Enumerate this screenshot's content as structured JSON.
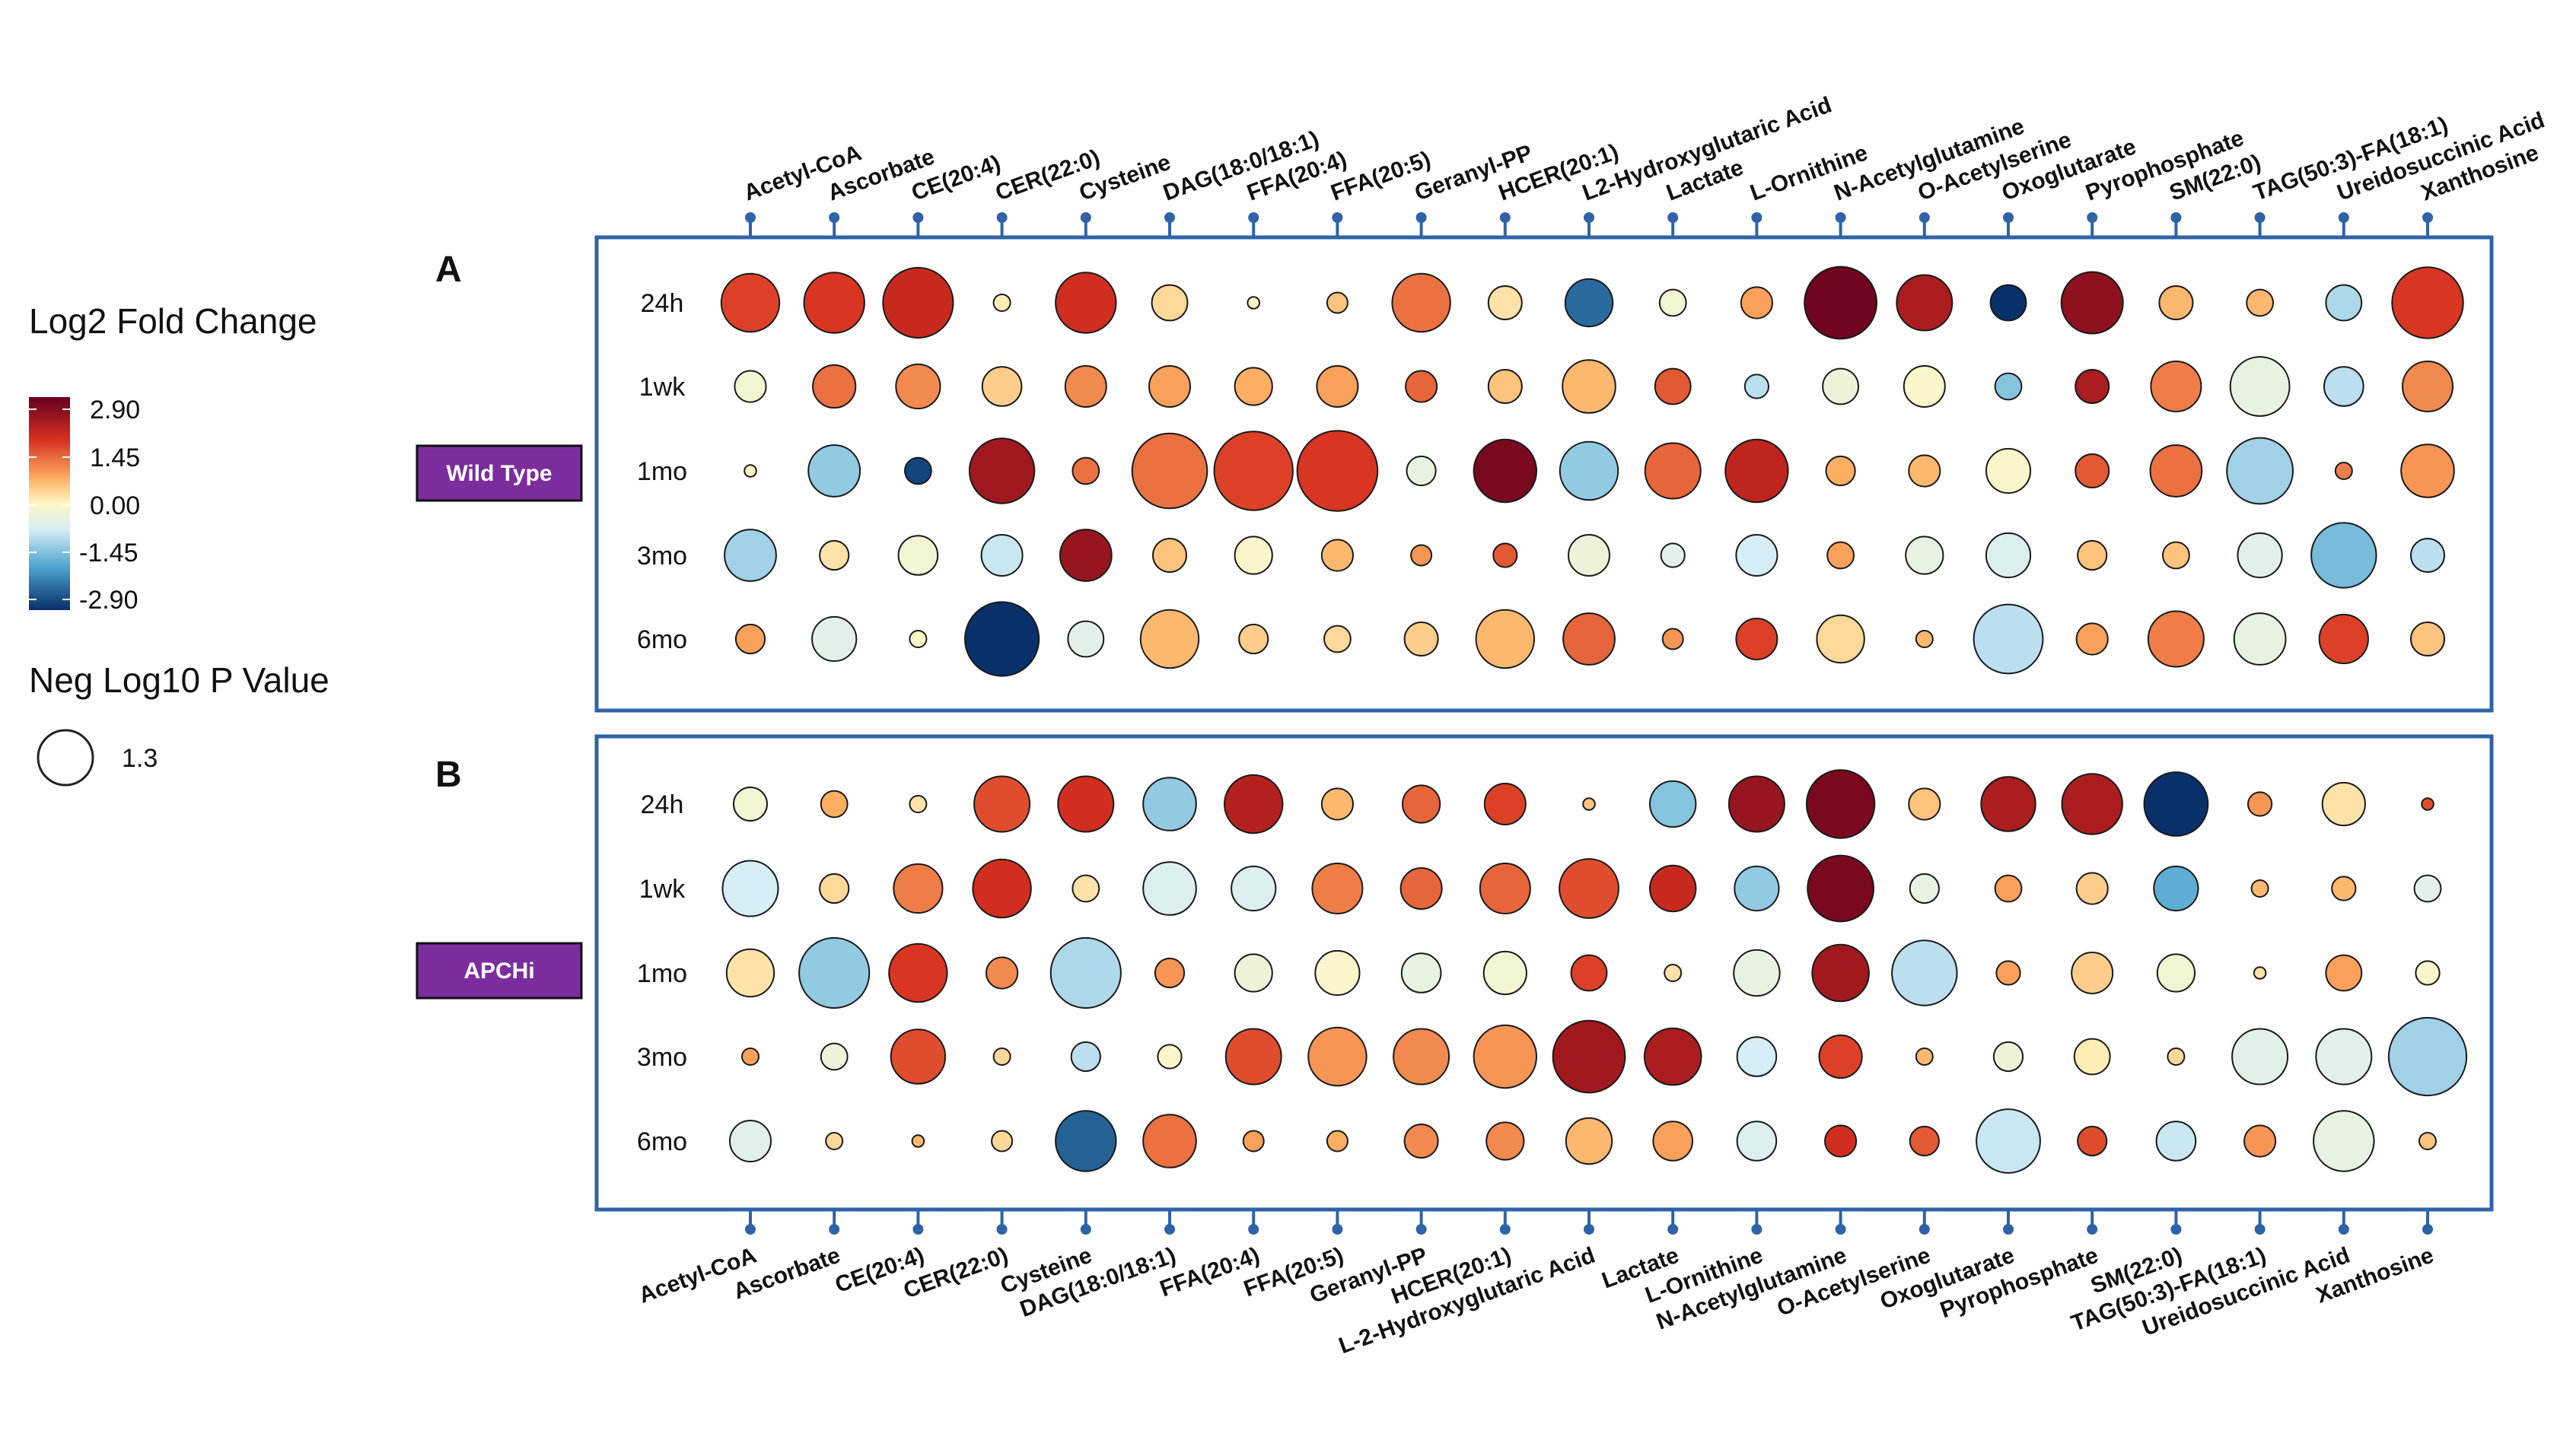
{
  "legend": {
    "color_title": "Log2 Fold Change",
    "color_ticks": [
      "2.90",
      "1.45",
      "0.00",
      "-1.45",
      "-2.90"
    ],
    "size_title": "Neg Log10 P Value",
    "size_value": "1.3"
  },
  "colors": {
    "group_box": "#7b2d9e",
    "frame": "#2e63a8",
    "scale": [
      "#67001f",
      "#d7301f",
      "#fdae61",
      "#fff7c4",
      "#d6eef5",
      "#4aa3cf",
      "#08306b"
    ]
  },
  "chart_data": {
    "type": "bubble-heatmap",
    "legend_placement": "left",
    "color_scale": {
      "label": "Log2 Fold Change",
      "min": -2.9,
      "max": 2.9
    },
    "size_scale": {
      "label": "Neg Log10 P Value",
      "reference_value": 1.3
    },
    "metabolites": [
      "Acetyl-CoA",
      "Ascorbate",
      "CE(20:4)",
      "CER(22:0)",
      "Cysteine",
      "DAG(18:0/18:1)",
      "FFA(20:4)",
      "FFA(20:5)",
      "Geranyl-PP",
      "HCER(20:1)",
      "L2-Hydroxyglutaric Acid",
      "Lactate",
      "L-Ornithine",
      "N-Acetylglutamine",
      "O-Acetylserine",
      "Oxoglutarate",
      "Pyrophosphate",
      "SM(22:0)",
      "TAG(50:3)-FA(18:1)",
      "Ureidosuccinic Acid",
      "Xanthosine"
    ],
    "metabolites_bottom": [
      "Acetyl-CoA",
      "Ascorbate",
      "CE(20:4)",
      "CER(22:0)",
      "Cysteine",
      "DAG(18:0/18:1)",
      "FFA(20:4)",
      "FFA(20:5)",
      "Geranyl-PP",
      "HCER(20:1)",
      "L-2-Hydroxyglutaric Acid",
      "Lactate",
      "L-Ornithine",
      "N-Acetylglutamine",
      "O-Acetylserine",
      "Oxoglutarate",
      "Pyrophosphate",
      "SM(22:0)",
      "TAG(50:3)-FA(18:1)",
      "Ureidosuccinic Acid",
      "Xanthosine"
    ],
    "timepoints": [
      "24h",
      "1wk",
      "1mo",
      "3mo",
      "6mo"
    ],
    "panels": [
      {
        "letter": "A",
        "group": "Wild Type",
        "log2fc": [
          [
            1.6,
            1.7,
            1.9,
            0.1,
            1.8,
            0.3,
            0.0,
            0.5,
            1.2,
            0.2,
            -2.3,
            -0.2,
            0.8,
            2.8,
            2.2,
            -2.9,
            2.5,
            0.6,
            0.6,
            -1.0,
            1.7
          ],
          [
            -0.2,
            1.2,
            1.0,
            0.4,
            1.0,
            0.8,
            0.7,
            0.8,
            1.3,
            0.5,
            0.6,
            1.4,
            -0.9,
            -0.3,
            -0.1,
            -1.3,
            2.2,
            1.1,
            -0.4,
            -0.9,
            1.0
          ],
          [
            0.0,
            -1.2,
            -2.7,
            2.3,
            1.2,
            1.2,
            1.6,
            1.7,
            -0.4,
            2.7,
            -1.2,
            1.3,
            2.0,
            0.7,
            0.6,
            -0.1,
            1.4,
            1.2,
            -1.1,
            1.1,
            0.9
          ],
          [
            -1.1,
            0.2,
            -0.2,
            -0.8,
            2.4,
            0.5,
            -0.1,
            0.6,
            0.9,
            1.4,
            -0.3,
            -0.5,
            -0.7,
            0.8,
            -0.4,
            -0.6,
            0.5,
            0.5,
            -0.5,
            -1.4,
            -0.9
          ],
          [
            0.8,
            -0.5,
            0.0,
            -2.9,
            -0.5,
            0.6,
            0.4,
            0.3,
            0.4,
            0.6,
            1.3,
            0.9,
            1.6,
            0.3,
            0.6,
            -0.9,
            0.8,
            1.1,
            -0.4,
            1.6,
            0.5
          ]
        ],
        "neglog10p": [
          [
            2.4,
            2.6,
            3.5,
            0.2,
            2.6,
            0.9,
            0.1,
            0.3,
            2.4,
            0.8,
            1.6,
            0.5,
            0.7,
            3.7,
            2.2,
            0.9,
            2.7,
            0.8,
            0.5,
            0.9,
            3.6
          ],
          [
            0.7,
            1.3,
            1.4,
            1.1,
            1.2,
            1.2,
            1.0,
            1.2,
            0.7,
            0.8,
            2.0,
            0.9,
            0.4,
            0.9,
            1.2,
            0.5,
            0.8,
            1.8,
            2.5,
            1.1,
            1.8
          ],
          [
            0.1,
            1.9,
            0.5,
            3.0,
            0.5,
            4.0,
            4.4,
            4.6,
            0.6,
            2.8,
            2.4,
            2.2,
            2.8,
            0.6,
            0.7,
            1.4,
            0.8,
            1.9,
            3.1,
            0.2,
            2.0
          ],
          [
            1.9,
            0.6,
            1.1,
            1.2,
            1.9,
            0.8,
            1.0,
            0.7,
            0.3,
            0.4,
            1.2,
            0.4,
            1.2,
            0.5,
            1.0,
            1.4,
            0.6,
            0.5,
            1.4,
            3.0,
            0.8
          ],
          [
            0.6,
            1.4,
            0.2,
            3.9,
            0.9,
            2.4,
            0.6,
            0.5,
            0.8,
            2.4,
            1.9,
            0.3,
            1.2,
            1.6,
            0.2,
            3.4,
            0.7,
            2.2,
            1.9,
            1.7,
            0.8
          ]
        ]
      },
      {
        "letter": "B",
        "group": "APCHi",
        "log2fc": [
          [
            -0.2,
            0.7,
            0.2,
            1.5,
            1.8,
            -1.2,
            2.1,
            0.6,
            1.3,
            1.6,
            0.5,
            -1.3,
            2.4,
            2.7,
            0.5,
            2.2,
            2.2,
            -2.9,
            0.9,
            0.2,
            1.5
          ],
          [
            -0.7,
            0.3,
            1.1,
            1.8,
            0.2,
            -0.6,
            -0.6,
            1.1,
            1.3,
            1.3,
            1.5,
            1.9,
            -1.2,
            2.7,
            -0.4,
            0.8,
            0.4,
            -1.6,
            0.6,
            0.6,
            -0.5
          ],
          [
            0.2,
            -1.2,
            1.7,
            1.0,
            -1.0,
            0.9,
            -0.3,
            -0.1,
            -0.4,
            -0.2,
            1.6,
            0.2,
            -0.4,
            2.3,
            -0.9,
            0.8,
            0.4,
            -0.2,
            0.2,
            0.8,
            -0.1
          ],
          [
            0.8,
            -0.3,
            1.5,
            0.3,
            -0.9,
            -0.1,
            1.5,
            0.9,
            1.0,
            0.9,
            2.3,
            2.2,
            -0.7,
            1.6,
            0.6,
            -0.3,
            0.1,
            0.3,
            -0.5,
            -0.5,
            -1.1
          ],
          [
            -0.5,
            0.3,
            0.6,
            0.3,
            -2.4,
            1.2,
            0.8,
            0.7,
            1.0,
            1.0,
            0.6,
            0.8,
            -0.6,
            1.8,
            1.4,
            -0.8,
            1.5,
            -0.8,
            0.9,
            -0.4,
            0.5
          ]
        ],
        "neglog10p": [
          [
            0.8,
            0.5,
            0.2,
            2.2,
            2.2,
            2.0,
            2.4,
            0.7,
            1.0,
            1.2,
            0.1,
            1.5,
            2.2,
            3.3,
            0.7,
            2.1,
            2.6,
            2.9,
            0.4,
            1.3,
            0.1
          ],
          [
            2.2,
            0.6,
            1.7,
            2.4,
            0.5,
            2.0,
            1.4,
            1.8,
            1.2,
            1.8,
            2.5,
            1.5,
            1.4,
            3.1,
            0.6,
            0.5,
            0.7,
            1.4,
            0.2,
            0.4,
            0.5
          ],
          [
            1.6,
            3.5,
            2.4,
            0.7,
            3.5,
            0.6,
            1.0,
            1.4,
            1.1,
            1.3,
            0.9,
            0.2,
            1.5,
            2.3,
            3.0,
            0.4,
            1.2,
            1.0,
            0.1,
            0.9,
            0.4
          ],
          [
            0.2,
            0.5,
            2.1,
            0.2,
            0.6,
            0.4,
            2.2,
            2.4,
            2.2,
            2.8,
            3.7,
            2.3,
            1.1,
            1.3,
            0.2,
            0.6,
            0.9,
            0.2,
            2.2,
            2.2,
            4.3
          ],
          [
            1.2,
            0.2,
            0.1,
            0.3,
            2.6,
            2.0,
            0.3,
            0.3,
            0.8,
            1.0,
            1.5,
            1.1,
            1.1,
            0.7,
            0.6,
            2.9,
            0.6,
            1.1,
            0.7,
            2.6,
            0.2
          ]
        ]
      }
    ]
  }
}
